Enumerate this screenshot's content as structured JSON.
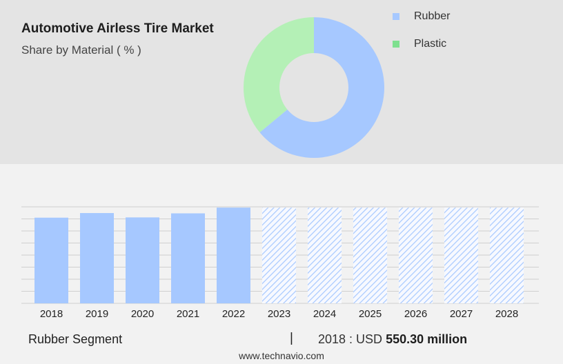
{
  "header": {
    "title": "Automotive Airless Tire Market",
    "subtitle": "Share by Material ( % )"
  },
  "legend": [
    {
      "label": "Rubber",
      "color": "#a6c8ff"
    },
    {
      "label": "Plastic",
      "color": "#7ee08f"
    }
  ],
  "chart_data": [
    {
      "type": "pie",
      "title": "Share by Material ( % )",
      "donut": true,
      "slices": [
        {
          "label": "Rubber",
          "value": 64,
          "color": "#a6c8ff"
        },
        {
          "label": "Plastic",
          "value": 36,
          "color": "#b4f0b6"
        }
      ]
    },
    {
      "type": "bar",
      "categories": [
        "2018",
        "2019",
        "2020",
        "2021",
        "2022",
        "2023",
        "2024",
        "2025",
        "2026",
        "2027",
        "2028"
      ],
      "values": [
        550.3,
        580,
        552,
        578,
        615,
        null,
        null,
        null,
        null,
        null,
        null
      ],
      "forecast_categories": [
        "2023",
        "2024",
        "2025",
        "2026",
        "2027",
        "2028"
      ],
      "ylim": [
        0,
        620
      ],
      "grid": true,
      "bar_color": "#a6c8ff",
      "forecast_pattern_color": "#a6c8ff"
    }
  ],
  "footer": {
    "segment": "Rubber Segment",
    "separator": "|",
    "value_prefix": "2018 : USD",
    "value_bold": "550.30 million",
    "url": "www.technavio.com"
  }
}
